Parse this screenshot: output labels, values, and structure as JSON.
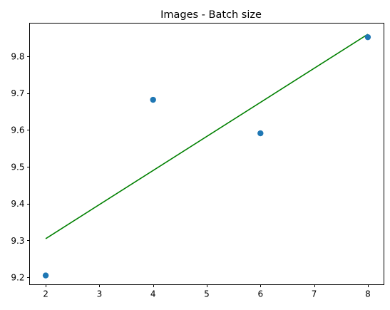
{
  "chart_data": {
    "type": "scatter",
    "title": "Images - Batch size",
    "xlabel": "",
    "ylabel": "",
    "xlim": [
      1.7,
      8.3
    ],
    "ylim": [
      9.18,
      9.89
    ],
    "x_ticks": [
      2,
      3,
      4,
      5,
      6,
      7,
      8
    ],
    "y_ticks": [
      9.2,
      9.3,
      9.4,
      9.5,
      9.6,
      9.7,
      9.8
    ],
    "x_tick_labels": [
      "2",
      "3",
      "4",
      "5",
      "6",
      "7",
      "8"
    ],
    "y_tick_labels": [
      "9.2",
      "9.3",
      "9.4",
      "9.5",
      "9.6",
      "9.7",
      "9.8"
    ],
    "grid": false,
    "series": [
      {
        "kind": "scatter",
        "color": "#1f77b4",
        "x": [
          2,
          4,
          6,
          8
        ],
        "y": [
          9.205,
          9.682,
          9.591,
          9.852
        ]
      },
      {
        "kind": "line",
        "color": "#008000",
        "x": [
          2,
          8
        ],
        "y": [
          9.305,
          9.86
        ]
      }
    ]
  }
}
